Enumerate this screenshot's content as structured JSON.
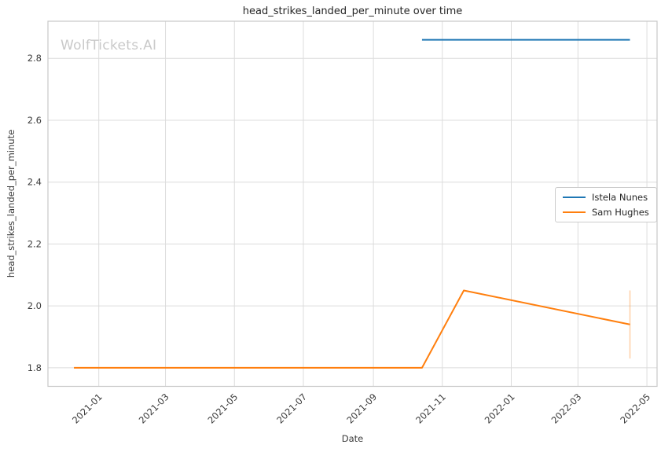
{
  "watermark": "WolfTickets.AI",
  "chart_data": {
    "type": "line",
    "title": "head_strikes_landed_per_minute over time",
    "xlabel": "Date",
    "ylabel": "head_strikes_landed_per_minute",
    "xlim": [
      "2020-11-17",
      "2022-05-10"
    ],
    "ylim": [
      1.74,
      2.92
    ],
    "grid": true,
    "legend_position": "center-right",
    "yticks": [
      1.8,
      2.0,
      2.2,
      2.4,
      2.6,
      2.8
    ],
    "xticks": [
      {
        "date": "2021-01-01",
        "label": "2021-01"
      },
      {
        "date": "2021-03-01",
        "label": "2021-03"
      },
      {
        "date": "2021-05-01",
        "label": "2021-05"
      },
      {
        "date": "2021-07-01",
        "label": "2021-07"
      },
      {
        "date": "2021-09-01",
        "label": "2021-09"
      },
      {
        "date": "2021-11-01",
        "label": "2021-11"
      },
      {
        "date": "2022-01-01",
        "label": "2022-01"
      },
      {
        "date": "2022-03-01",
        "label": "2022-03"
      },
      {
        "date": "2022-05-01",
        "label": "2022-05"
      }
    ],
    "series": [
      {
        "name": "Istela Nunes",
        "color": "#1f77b4",
        "points": [
          {
            "date": "2021-10-14",
            "value": 2.86
          },
          {
            "date": "2022-04-16",
            "value": 2.86
          }
        ]
      },
      {
        "name": "Sam Hughes",
        "color": "#ff7f0e",
        "points": [
          {
            "date": "2020-12-10",
            "value": 1.8
          },
          {
            "date": "2021-10-14",
            "value": 1.8
          },
          {
            "date": "2021-11-20",
            "value": 2.05
          },
          {
            "date": "2022-04-16",
            "value": 1.94,
            "error_low": 1.83,
            "error_high": 2.05
          }
        ]
      }
    ]
  }
}
